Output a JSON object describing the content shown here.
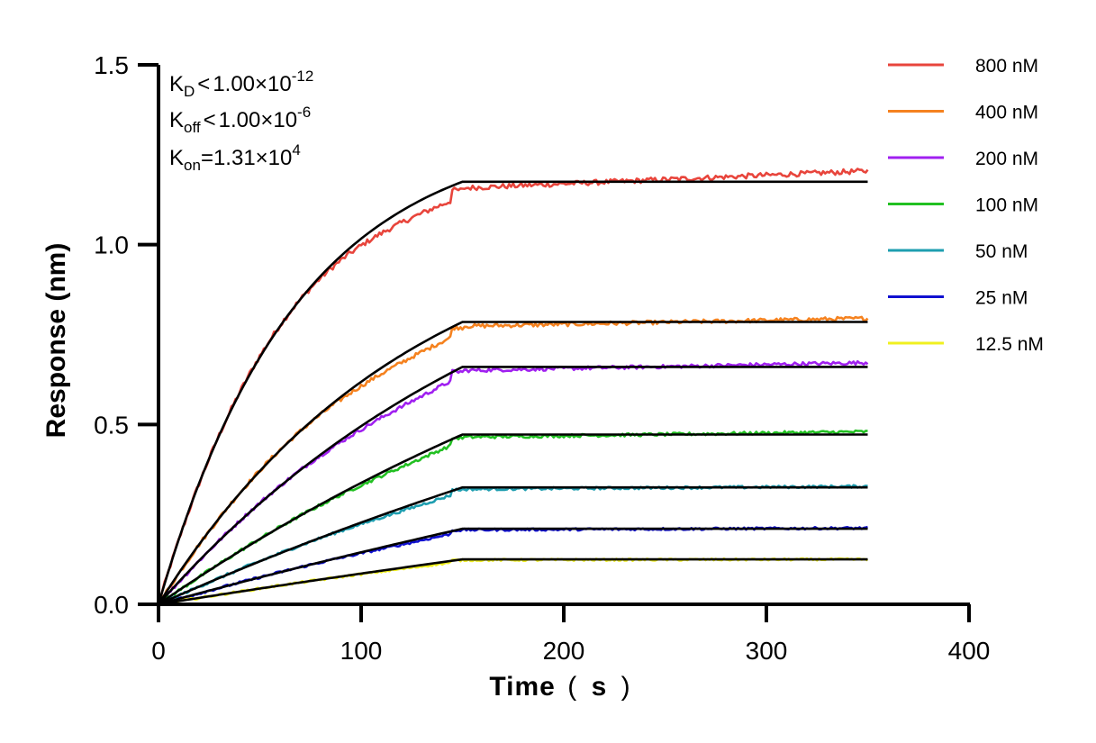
{
  "chart_data": {
    "type": "line",
    "title": "",
    "xlabel": "Time〔s〕",
    "xlabel_parts": {
      "main": "Time",
      "open": "(",
      "unit": "s",
      "close": ")"
    },
    "ylabel": "Response (nm)",
    "xlim": [
      0,
      400
    ],
    "ylim": [
      0,
      1.5
    ],
    "x_ticks": [
      "0",
      "100",
      "200",
      "300",
      "400"
    ],
    "y_ticks": [
      "0.0",
      "0.5",
      "1.0",
      "1.5"
    ],
    "grid": false,
    "legend_position": "right",
    "association_end_s": 150,
    "dissociation_end_s": 350,
    "fit_color": "#000000",
    "annotations": {
      "kd": {
        "base": "K",
        "sub": "D",
        "rel": "<",
        "value": "1.00×10",
        "exp": "-12"
      },
      "koff": {
        "base": "K",
        "sub": "off",
        "rel": "<",
        "value": "1.00×10",
        "exp": "-6"
      },
      "kon": {
        "base": "K",
        "sub": "on",
        "rel": "=",
        "value": "1.31×10",
        "exp": "4"
      }
    },
    "series": [
      {
        "name": "800 nM",
        "color": "#e8453c",
        "plateau": 1.175,
        "curv": 2.2,
        "end": 1.205
      },
      {
        "name": "400 nM",
        "color": "#f5821f",
        "plateau": 0.785,
        "curv": 1.2,
        "end": 0.795
      },
      {
        "name": "200 nM",
        "color": "#a020f0",
        "plateau": 0.66,
        "curv": 0.8,
        "end": 0.672
      },
      {
        "name": "100 nM",
        "color": "#22c022",
        "plateau": 0.472,
        "curv": 0.45,
        "end": 0.48
      },
      {
        "name": "50 nM",
        "color": "#1e9eb0",
        "plateau": 0.325,
        "curv": 0.3,
        "end": 0.328
      },
      {
        "name": "25 nM",
        "color": "#1010d0",
        "plateau": 0.21,
        "curv": 0.2,
        "end": 0.212
      },
      {
        "name": "12.5 nM",
        "color": "#f0f020",
        "plateau": 0.125,
        "curv": 0.15,
        "end": 0.125
      }
    ]
  }
}
